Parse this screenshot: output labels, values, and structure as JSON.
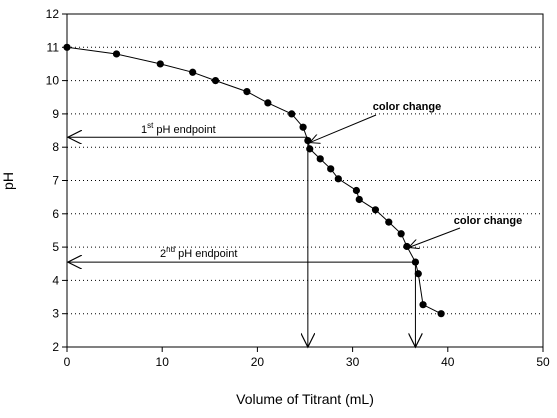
{
  "chart_data": {
    "type": "scatter",
    "xlabel": "Volume of Titrant (mL)",
    "ylabel": "pH",
    "xlim": [
      0,
      50
    ],
    "ylim": [
      2,
      12
    ],
    "xticks": [
      0,
      10,
      20,
      30,
      40,
      50
    ],
    "yticks": [
      2,
      3,
      4,
      5,
      6,
      7,
      8,
      9,
      10,
      11,
      12
    ],
    "grid": "horizontal dotted",
    "series": [
      {
        "points": [
          [
            0,
            11.0
          ],
          [
            5.2,
            10.8
          ],
          [
            9.8,
            10.5
          ],
          [
            13.2,
            10.25
          ],
          [
            15.6,
            10.0
          ],
          [
            18.9,
            9.67
          ],
          [
            21.1,
            9.33
          ],
          [
            23.6,
            9.0
          ],
          [
            24.8,
            8.6
          ],
          [
            25.3,
            8.2
          ],
          [
            25.5,
            7.95
          ],
          [
            26.6,
            7.65
          ],
          [
            27.7,
            7.35
          ],
          [
            28.5,
            7.05
          ],
          [
            30.4,
            6.7
          ],
          [
            30.7,
            6.43
          ],
          [
            32.4,
            6.12
          ],
          [
            33.8,
            5.75
          ],
          [
            35.1,
            5.4
          ],
          [
            35.7,
            5.02
          ],
          [
            36.6,
            4.55
          ],
          [
            36.9,
            4.2
          ],
          [
            37.4,
            3.27
          ],
          [
            39.3,
            3.0
          ]
        ]
      }
    ],
    "annotations": [
      {
        "id": "cc1",
        "text": "color change"
      },
      {
        "id": "cc2",
        "text": "color change"
      },
      {
        "id": "ep1",
        "num": "1",
        "sup": "st",
        "text": " pH endpoint",
        "ph": 8.3,
        "volume": 25.3
      },
      {
        "id": "ep2",
        "num": "2",
        "sup": "nd",
        "text": " pH endpoint",
        "ph": 4.55,
        "volume": 36.6
      }
    ]
  }
}
